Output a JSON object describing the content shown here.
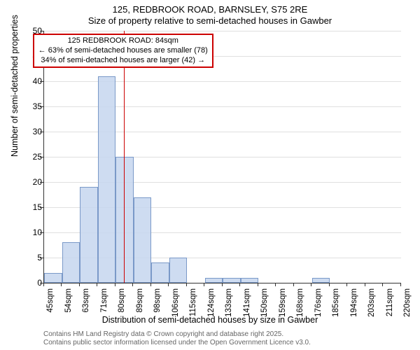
{
  "chart": {
    "type": "histogram",
    "background_color": "#ffffff",
    "grid_color": "#e0e0e0",
    "axis_color": "#333333",
    "title_main": "125, REDBROOK ROAD, BARNSLEY, S75 2RE",
    "title_sub": "Size of property relative to semi-detached houses in Gawber",
    "title_fontsize": 13,
    "y_label": "Number of semi-detached properties",
    "x_label": "Distribution of semi-detached houses by size in Gawber",
    "label_fontsize": 12.5,
    "ylim": [
      0,
      50
    ],
    "ytick_step": 5,
    "y_ticks": [
      0,
      5,
      10,
      15,
      20,
      25,
      30,
      35,
      40,
      45,
      50
    ],
    "x_ticks": [
      "45sqm",
      "54sqm",
      "63sqm",
      "71sqm",
      "80sqm",
      "89sqm",
      "98sqm",
      "106sqm",
      "115sqm",
      "124sqm",
      "133sqm",
      "141sqm",
      "150sqm",
      "159sqm",
      "168sqm",
      "176sqm",
      "185sqm",
      "194sqm",
      "203sqm",
      "211sqm",
      "220sqm"
    ],
    "bars": [
      2,
      8,
      19,
      41,
      25,
      17,
      4,
      5,
      0,
      1,
      1,
      1,
      0,
      0,
      0,
      1,
      0,
      0,
      0,
      0
    ],
    "bar_fill": "#c6d6ee",
    "bar_border": "#7a99c8",
    "bar_opacity": 0.85,
    "reference_line": {
      "value_sqm": 84,
      "color": "#cc0000",
      "width": 1.5
    },
    "annotation": {
      "line1": "125 REDBROOK ROAD: 84sqm",
      "line2": "← 63% of semi-detached houses are smaller (78)",
      "line3": "34% of semi-detached houses are larger (42) →",
      "border_color": "#cc0000",
      "fontsize": 11
    },
    "attribution_line1": "Contains HM Land Registry data © Crown copyright and database right 2025.",
    "attribution_line2": "Contains public sector information licensed under the Open Government Licence v3.0.",
    "attribution_fontsize": 10,
    "attribution_color": "#666666"
  }
}
